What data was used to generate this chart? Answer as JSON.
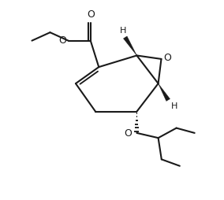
{
  "bg_color": "#ffffff",
  "line_color": "#1a1a1a",
  "line_width": 1.5,
  "font_size": 9,
  "font_size_h": 8,
  "figsize": [
    2.84,
    2.54
  ],
  "dpi": 100,
  "xlim": [
    -1,
    11
  ],
  "ylim": [
    -1.5,
    10.5
  ]
}
